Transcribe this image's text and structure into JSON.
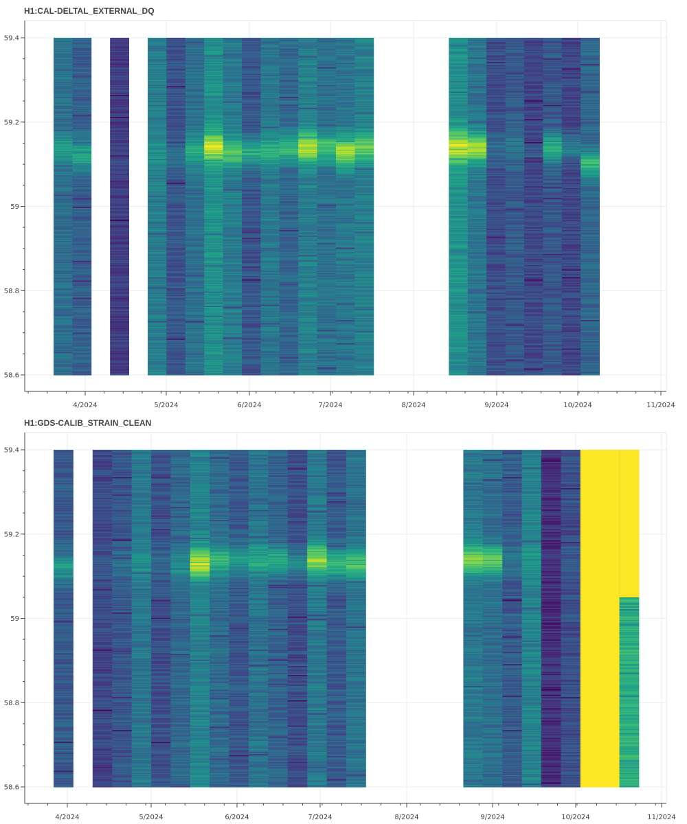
{
  "chart_data": [
    {
      "type": "heatmap",
      "title": "H1:CAL-DELTAL_EXTERNAL_DQ",
      "xlabel": "",
      "ylabel": "",
      "ylim": [
        58.6,
        59.4
      ],
      "y_ticks": [
        "58.6",
        "58.8",
        "59",
        "59.2",
        "59.4"
      ],
      "x_ticks": [
        "4/2024",
        "5/2024",
        "6/2024",
        "7/2024",
        "8/2024",
        "9/2024",
        "10/2024",
        "11/2024"
      ],
      "grid": true,
      "colormap": "viridis",
      "columns": [
        {
          "week": 1,
          "level": 0.38,
          "peak_freq": 59.14,
          "peak_strength": 0.18
        },
        {
          "week": 2,
          "level": 0.32,
          "peak_freq": 59.12,
          "peak_strength": 0.3
        },
        {
          "week": 4,
          "level": 0.18,
          "peak_freq": 59.12,
          "peak_strength": 0.05
        },
        {
          "week": 6,
          "level": 0.42,
          "peak_freq": 59.12,
          "peak_strength": 0.1
        },
        {
          "week": 7,
          "level": 0.28,
          "peak_freq": 59.12,
          "peak_strength": 0.1
        },
        {
          "week": 8,
          "level": 0.36,
          "peak_freq": 59.13,
          "peak_strength": 0.25
        },
        {
          "week": 9,
          "level": 0.48,
          "peak_freq": 59.14,
          "peak_strength": 0.45
        },
        {
          "week": 10,
          "level": 0.4,
          "peak_freq": 59.13,
          "peak_strength": 0.3
        },
        {
          "week": 11,
          "level": 0.28,
          "peak_freq": 59.13,
          "peak_strength": 0.35
        },
        {
          "week": 12,
          "level": 0.4,
          "peak_freq": 59.13,
          "peak_strength": 0.25
        },
        {
          "week": 13,
          "level": 0.32,
          "peak_freq": 59.14,
          "peak_strength": 0.32
        },
        {
          "week": 14,
          "level": 0.44,
          "peak_freq": 59.14,
          "peak_strength": 0.45
        },
        {
          "week": 15,
          "level": 0.36,
          "peak_freq": 59.14,
          "peak_strength": 0.35
        },
        {
          "week": 16,
          "level": 0.4,
          "peak_freq": 59.13,
          "peak_strength": 0.48
        },
        {
          "week": 17,
          "level": 0.44,
          "peak_freq": 59.14,
          "peak_strength": 0.32
        },
        {
          "week": 22,
          "level": 0.5,
          "peak_freq": 59.14,
          "peak_strength": 0.45
        },
        {
          "week": 23,
          "level": 0.38,
          "peak_freq": 59.14,
          "peak_strength": 0.48
        },
        {
          "week": 24,
          "level": 0.25,
          "peak_freq": 59.14,
          "peak_strength": 0.12
        },
        {
          "week": 25,
          "level": 0.3,
          "peak_freq": 59.14,
          "peak_strength": 0.1
        },
        {
          "week": 26,
          "level": 0.22,
          "peak_freq": 59.13,
          "peak_strength": 0.05
        },
        {
          "week": 27,
          "level": 0.28,
          "peak_freq": 59.14,
          "peak_strength": 0.35
        },
        {
          "week": 28,
          "level": 0.22,
          "peak_freq": 59.14,
          "peak_strength": 0.2
        },
        {
          "week": 29,
          "level": 0.32,
          "peak_freq": 59.1,
          "peak_strength": 0.35
        }
      ]
    },
    {
      "type": "heatmap",
      "title": "H1:GDS-CALIB_STRAIN_CLEAN",
      "xlabel": "",
      "ylabel": "",
      "ylim": [
        58.6,
        59.4
      ],
      "y_ticks": [
        "58.6",
        "58.8",
        "59",
        "59.2",
        "59.4"
      ],
      "x_ticks": [
        "4/2024",
        "5/2024",
        "6/2024",
        "7/2024",
        "8/2024",
        "9/2024",
        "10/2024",
        "11/2024"
      ],
      "grid": true,
      "colormap": "viridis",
      "columns": [
        {
          "week": 1,
          "level": 0.3,
          "peak_freq": 59.12,
          "peak_strength": 0.25
        },
        {
          "week": 3,
          "level": 0.22,
          "peak_freq": 59.13,
          "peak_strength": 0.05
        },
        {
          "week": 4,
          "level": 0.28,
          "peak_freq": 59.13,
          "peak_strength": 0.08
        },
        {
          "week": 5,
          "level": 0.38,
          "peak_freq": 59.13,
          "peak_strength": 0.1
        },
        {
          "week": 6,
          "level": 0.26,
          "peak_freq": 59.13,
          "peak_strength": 0.1
        },
        {
          "week": 7,
          "level": 0.32,
          "peak_freq": 59.13,
          "peak_strength": 0.18
        },
        {
          "week": 8,
          "level": 0.46,
          "peak_freq": 59.13,
          "peak_strength": 0.45
        },
        {
          "week": 9,
          "level": 0.36,
          "peak_freq": 59.14,
          "peak_strength": 0.3
        },
        {
          "week": 10,
          "level": 0.28,
          "peak_freq": 59.14,
          "peak_strength": 0.3
        },
        {
          "week": 11,
          "level": 0.4,
          "peak_freq": 59.14,
          "peak_strength": 0.22
        },
        {
          "week": 12,
          "level": 0.3,
          "peak_freq": 59.14,
          "peak_strength": 0.28
        },
        {
          "week": 13,
          "level": 0.22,
          "peak_freq": 59.13,
          "peak_strength": 0.22
        },
        {
          "week": 14,
          "level": 0.4,
          "peak_freq": 59.14,
          "peak_strength": 0.45
        },
        {
          "week": 15,
          "level": 0.3,
          "peak_freq": 59.13,
          "peak_strength": 0.4
        },
        {
          "week": 16,
          "level": 0.4,
          "peak_freq": 59.13,
          "peak_strength": 0.35
        },
        {
          "week": 22,
          "level": 0.42,
          "peak_freq": 59.14,
          "peak_strength": 0.4
        },
        {
          "week": 23,
          "level": 0.38,
          "peak_freq": 59.14,
          "peak_strength": 0.4
        },
        {
          "week": 24,
          "level": 0.28,
          "peak_freq": 59.14,
          "peak_strength": 0.1
        },
        {
          "week": 25,
          "level": 0.46,
          "peak_freq": 59.14,
          "peak_strength": 0.08
        },
        {
          "week": 26,
          "level": 0.14,
          "peak_freq": 59.14,
          "peak_strength": 0.02
        },
        {
          "week": 27,
          "level": 0.26,
          "peak_freq": 59.14,
          "peak_strength": 0.05
        },
        {
          "week": 28,
          "level": 1.0,
          "peak_freq": 59.0,
          "peak_strength": 0.0
        },
        {
          "week": 29,
          "level": 1.0,
          "peak_freq": 59.0,
          "peak_strength": 0.0
        },
        {
          "week": 30,
          "level": 0.64,
          "peak_freq": 59.0,
          "peak_strength": 0.0
        }
      ]
    }
  ]
}
